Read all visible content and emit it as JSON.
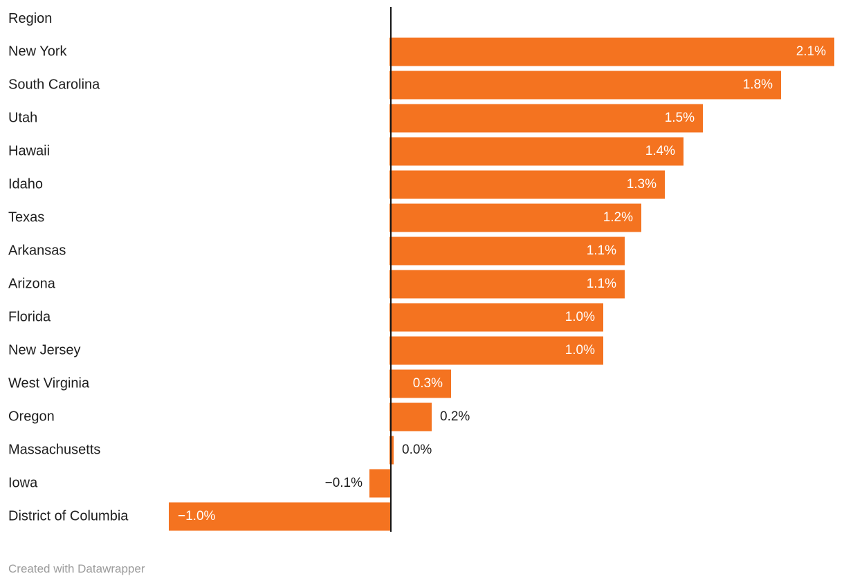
{
  "chart": {
    "header_label": "Region",
    "footer": "Created with Datawrapper"
  },
  "colors": {
    "background": "#ffffff",
    "bar": "#f47320",
    "axis": "#141414",
    "label_text": "#1d1d1d",
    "value_inside": "#ffffff",
    "value_outside": "#1d1d1d",
    "footer_text": "#9b9b9b"
  },
  "chart_data": {
    "type": "bar",
    "orientation": "horizontal",
    "title": "",
    "column_header": "Region",
    "unit": "%",
    "xlim": [
      -1.1,
      2.2
    ],
    "baseline": 0,
    "grid": false,
    "legend": "none",
    "categories": [
      "New York",
      "South Carolina",
      "Utah",
      "Hawaii",
      "Idaho",
      "Texas",
      "Arkansas",
      "Arizona",
      "Florida",
      "New Jersey",
      "West Virginia",
      "Oregon",
      "Massachusetts",
      "Iowa",
      "District of Columbia"
    ],
    "values": [
      2.1,
      1.8,
      1.5,
      1.4,
      1.3,
      1.2,
      1.1,
      1.1,
      1.0,
      1.0,
      0.3,
      0.2,
      0.0,
      -0.1,
      -1.0
    ],
    "values_est": [
      2.1,
      1.85,
      1.48,
      1.39,
      1.3,
      1.19,
      1.11,
      1.11,
      1.01,
      1.01,
      0.29,
      0.2,
      0.02,
      -0.1,
      -1.05
    ],
    "value_labels": [
      "2.1%",
      "1.8%",
      "1.5%",
      "1.4%",
      "1.3%",
      "1.2%",
      "1.1%",
      "1.1%",
      "1.0%",
      "1.0%",
      "0.3%",
      "0.2%",
      "0.0%",
      "−0.1%",
      "−1.0%"
    ],
    "value_label_placement": [
      "inside-right",
      "inside-right",
      "inside-right",
      "inside-right",
      "inside-right",
      "inside-right",
      "inside-right",
      "inside-right",
      "inside-right",
      "inside-right",
      "inside-right",
      "outside-right",
      "outside-right",
      "outside-left",
      "inside-left"
    ],
    "footer": "Created with Datawrapper"
  }
}
